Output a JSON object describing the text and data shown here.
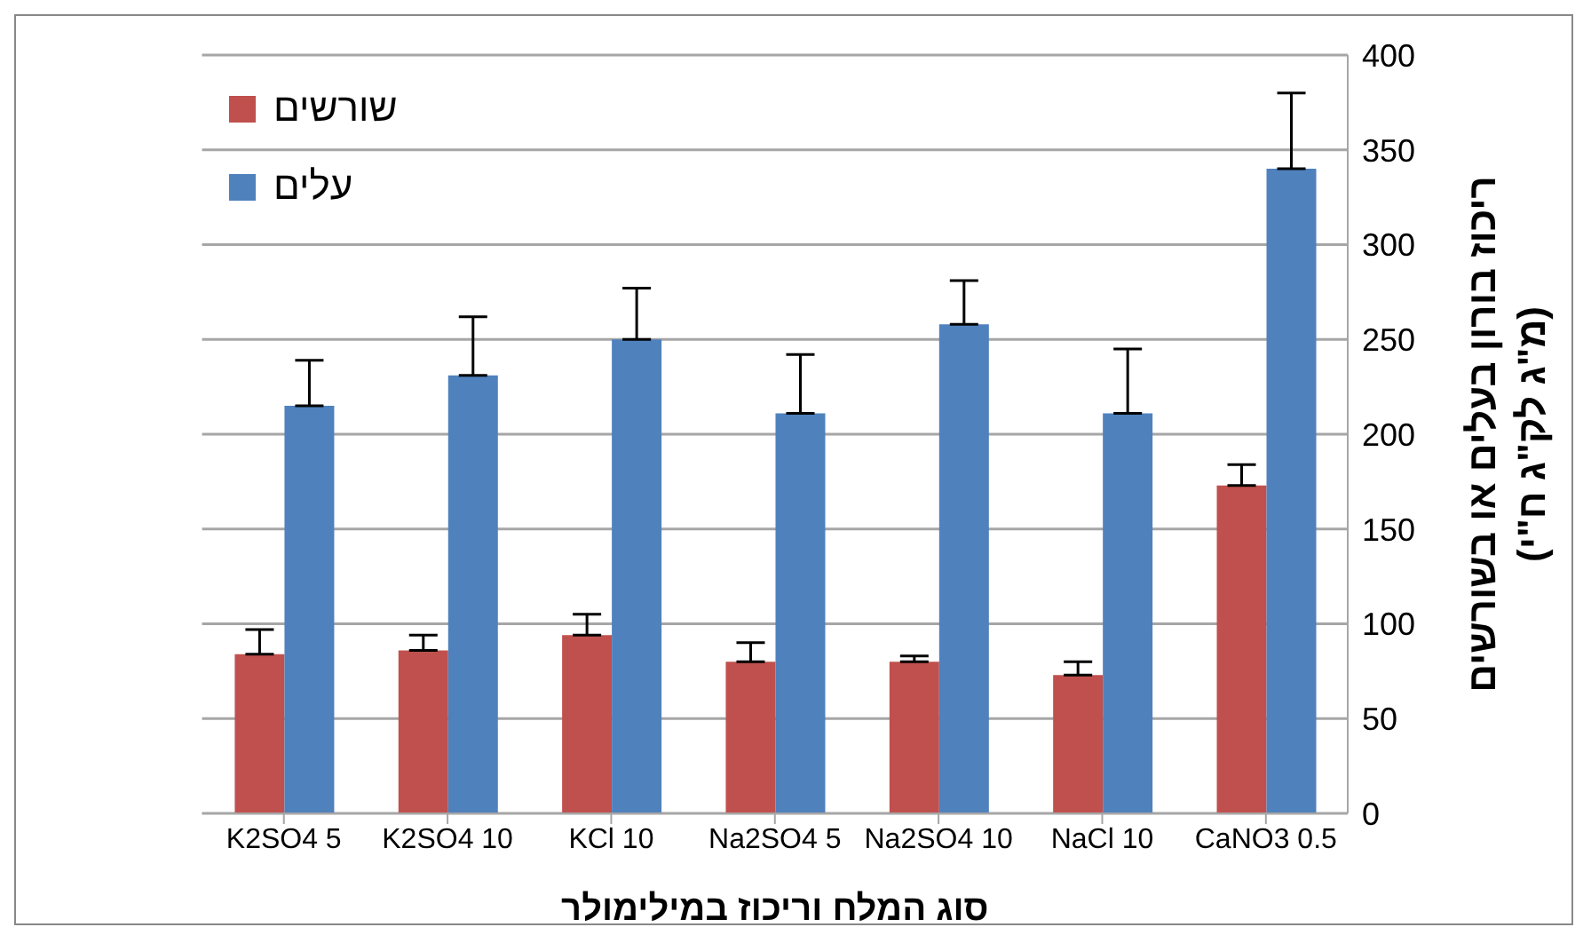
{
  "chart_data": {
    "type": "bar",
    "xlabel": "סוג המלח וריכוז במילימולר",
    "ylabel": "ריכוז בורון  בעלים או בשורשים\n(מ\"ג לק\"ג ח\"י)",
    "categories": [
      "K2SO4 5",
      "K2SO4 10",
      "KCl 10",
      "Na2SO4 5",
      "Na2SO4 10",
      "NaCl  10",
      "CaNO3 0.5"
    ],
    "series": [
      {
        "name": "שורשים",
        "color": "#c0504d",
        "values": [
          84,
          86,
          94,
          80,
          80,
          73,
          173
        ],
        "errors": [
          [
            84,
            97
          ],
          [
            86,
            94
          ],
          [
            94,
            105
          ],
          [
            80,
            90
          ],
          [
            80,
            83
          ],
          [
            73,
            80
          ],
          [
            173,
            184
          ]
        ]
      },
      {
        "name": "עלים",
        "color": "#4f81bd",
        "values": [
          215,
          231,
          250,
          211,
          258,
          211,
          340
        ],
        "errors": [
          [
            215,
            239
          ],
          [
            231,
            262
          ],
          [
            250,
            277
          ],
          [
            211,
            242
          ],
          [
            258,
            281
          ],
          [
            211,
            245
          ],
          [
            340,
            380
          ]
        ]
      }
    ],
    "ylim": [
      0,
      400
    ],
    "yticks": [
      0,
      50,
      100,
      150,
      200,
      250,
      300,
      350,
      400
    ],
    "grid": "y",
    "legend": "top left"
  }
}
